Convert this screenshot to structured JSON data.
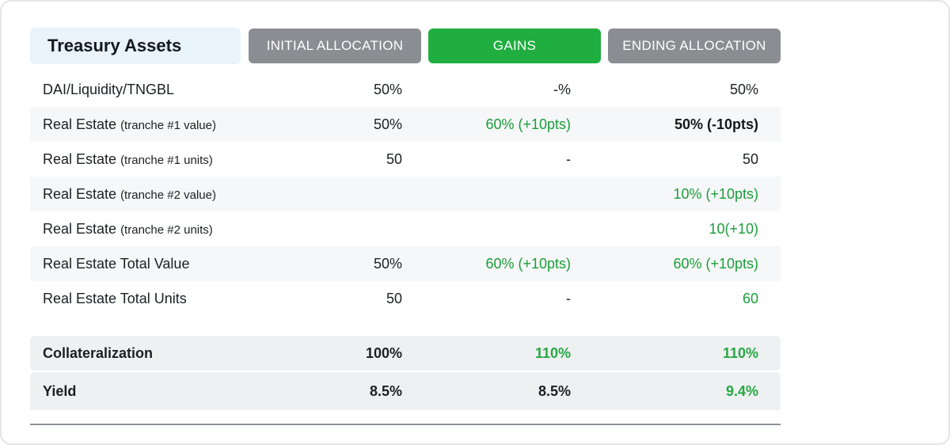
{
  "header": {
    "title": "Treasury Assets",
    "col_initial": "INITIAL ALLOCATION",
    "col_gains": "GAINS",
    "col_ending": "ENDING ALLOCATION"
  },
  "rows": [
    {
      "label": "DAI/Liquidity/TNGBL",
      "sub": "",
      "initial": "50%",
      "gains": "-%",
      "ending": "50%"
    },
    {
      "label": "Real Estate ",
      "sub": "(tranche #1 value)",
      "initial": "50%",
      "gains": "60% (+10pts)",
      "ending": "50% (-10pts)"
    },
    {
      "label": "Real Estate ",
      "sub": "(tranche #1 units)",
      "initial": "50",
      "gains": "-",
      "ending": "50"
    },
    {
      "label": "Real Estate ",
      "sub": "(tranche #2 value)",
      "initial": "",
      "gains": "",
      "ending": "10% (+10pts)"
    },
    {
      "label": "Real Estate ",
      "sub": "(tranche #2 units)",
      "initial": "",
      "gains": "",
      "ending": "10(+10)"
    },
    {
      "label": "Real Estate Total Value",
      "sub": "",
      "initial": "50%",
      "gains": "60% (+10pts)",
      "ending": "60% (+10pts)"
    },
    {
      "label": "Real Estate Total Units",
      "sub": "",
      "initial": "50",
      "gains": "-",
      "ending": "60"
    }
  ],
  "summary": [
    {
      "label": "Collateralization",
      "initial": "100%",
      "gains": "110%",
      "ending": "110%"
    },
    {
      "label": "Yield",
      "initial": "8.5%",
      "gains": "8.5%",
      "ending": "9.4%"
    }
  ],
  "colors": {
    "gains_header": "#1fae3f",
    "gray_header": "#8a8d91",
    "title_bg": "#e8f3fc",
    "positive_text": "#1a9e3a"
  }
}
